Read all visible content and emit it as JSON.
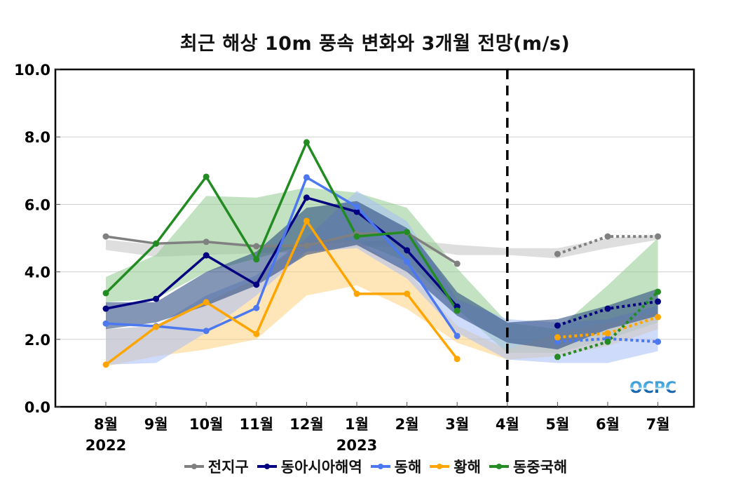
{
  "chart_data": {
    "type": "line",
    "title": "최근 해상 10m 풍속 변화와 3개월 전망(m/s)",
    "xlabel": "",
    "ylabel": "",
    "ylim": [
      0,
      10
    ],
    "yticks": [
      "0.0",
      "2.0",
      "4.0",
      "6.0",
      "8.0",
      "10.0"
    ],
    "grid": true,
    "categories": [
      "8월",
      "9월",
      "10월",
      "11월",
      "12월",
      "1월",
      "2월",
      "3월",
      "4월",
      "5월",
      "6월",
      "7월"
    ],
    "year_labels": [
      {
        "category": "8월",
        "text": "2022"
      },
      {
        "category": "1월",
        "text": "2023"
      }
    ],
    "forecast_divider_at": "4월",
    "legend_position": "bottom",
    "series": [
      {
        "name": "전지구",
        "color": "#808080",
        "band_color": "#d3d3d3",
        "observed": [
          5.05,
          4.84,
          4.89,
          4.76,
          4.78,
          5.13,
          5.16,
          4.24,
          null,
          null,
          null,
          null
        ],
        "forecast": [
          null,
          null,
          null,
          null,
          null,
          null,
          null,
          null,
          null,
          4.53,
          5.05,
          5.05
        ],
        "band_lower": [
          4.65,
          4.45,
          4.5,
          4.55,
          4.6,
          4.75,
          4.75,
          4.5,
          4.5,
          4.4,
          4.7,
          4.95
        ],
        "band_upper": [
          4.95,
          4.8,
          4.85,
          4.75,
          4.8,
          4.9,
          4.95,
          4.8,
          4.7,
          4.7,
          5.0,
          5.1
        ]
      },
      {
        "name": "동아시아해역",
        "color": "#000080",
        "band_color": "#1f3f7a",
        "observed": [
          2.91,
          3.2,
          4.49,
          3.62,
          6.2,
          5.78,
          4.64,
          2.97,
          null,
          null,
          null,
          null
        ],
        "forecast": [
          null,
          null,
          null,
          null,
          null,
          null,
          null,
          null,
          null,
          2.41,
          2.91,
          3.12
        ],
        "band_lower": [
          2.3,
          2.5,
          3.0,
          3.6,
          4.5,
          4.8,
          4.0,
          2.7,
          1.9,
          1.7,
          2.3,
          2.7
        ],
        "band_upper": [
          3.1,
          3.1,
          4.0,
          4.6,
          5.9,
          6.1,
          5.3,
          3.4,
          2.5,
          2.6,
          3.0,
          3.5
        ]
      },
      {
        "name": "동해",
        "color": "#4c78f0",
        "band_color": "#a8bdf5",
        "observed": [
          2.47,
          2.39,
          2.25,
          2.93,
          6.8,
          5.93,
          4.3,
          2.1,
          null,
          null,
          null,
          null
        ],
        "forecast": [
          null,
          null,
          null,
          null,
          null,
          null,
          null,
          null,
          null,
          1.93,
          2.02,
          1.93
        ],
        "band_lower": [
          1.25,
          1.3,
          2.2,
          3.3,
          4.6,
          4.7,
          3.8,
          2.2,
          1.4,
          1.3,
          1.3,
          1.65
        ],
        "band_upper": [
          2.3,
          2.4,
          3.3,
          3.9,
          5.0,
          6.4,
          5.5,
          3.2,
          2.6,
          2.5,
          2.6,
          3.0
        ]
      },
      {
        "name": "황해",
        "color": "#ffa500",
        "band_color": "#ffd27f",
        "observed": [
          1.25,
          2.37,
          3.1,
          2.16,
          5.51,
          3.35,
          3.35,
          1.42,
          null,
          null,
          null,
          null
        ],
        "forecast": [
          null,
          null,
          null,
          null,
          null,
          null,
          null,
          null,
          null,
          2.06,
          2.18,
          2.66
        ],
        "band_lower": [
          1.2,
          1.5,
          1.7,
          2.0,
          3.3,
          3.6,
          2.9,
          1.9,
          1.4,
          1.5,
          1.8,
          2.3
        ],
        "band_upper": [
          2.3,
          2.4,
          3.1,
          3.8,
          5.0,
          4.9,
          4.0,
          2.4,
          1.7,
          2.2,
          2.5,
          2.8
        ]
      },
      {
        "name": "동중국해",
        "color": "#228b22",
        "band_color": "#8fca8f",
        "observed": [
          3.37,
          4.84,
          6.82,
          4.37,
          7.84,
          5.05,
          5.18,
          2.85,
          null,
          null,
          null,
          null
        ],
        "forecast": [
          null,
          null,
          null,
          null,
          null,
          null,
          null,
          null,
          null,
          1.48,
          1.93,
          3.41
        ],
        "band_lower": [
          3.1,
          3.2,
          4.0,
          4.4,
          4.8,
          4.9,
          4.3,
          2.9,
          1.6,
          1.6,
          2.0,
          2.5
        ],
        "band_upper": [
          3.85,
          4.5,
          6.25,
          6.2,
          6.5,
          6.35,
          5.9,
          4.1,
          2.5,
          2.3,
          3.6,
          5.0
        ]
      }
    ]
  },
  "logo": {
    "text": "OCPC"
  }
}
